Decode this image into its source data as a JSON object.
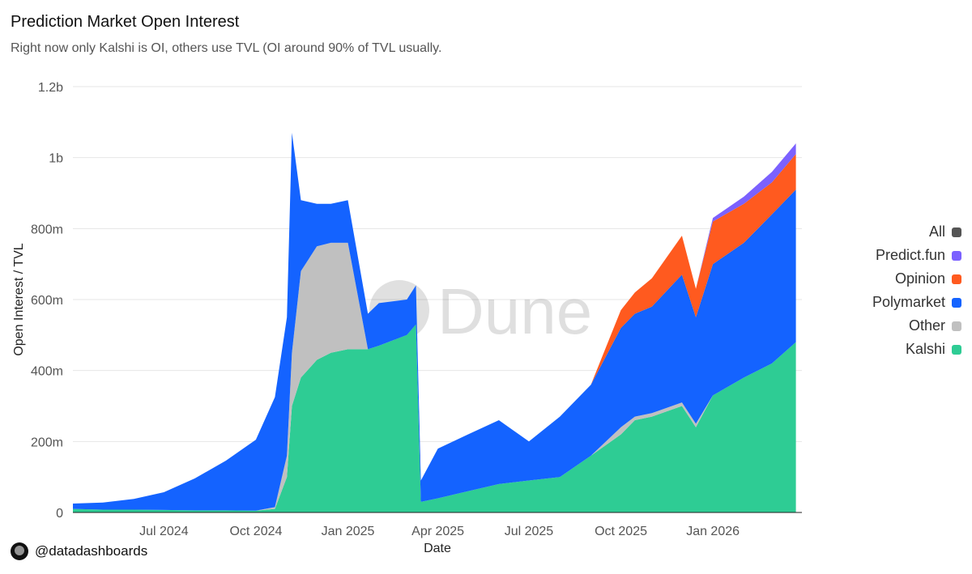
{
  "header": {
    "title": "Prediction Market Open Interest",
    "subtitle": "Right now only Kalshi is OI, others use TVL (OI around 90% of TVL usually."
  },
  "footer": {
    "handle": "@datadashboards"
  },
  "watermark": "Dune",
  "legend": [
    {
      "label": "All",
      "color": "#555555"
    },
    {
      "label": "Predict.fun",
      "color": "#7b61ff"
    },
    {
      "label": "Opinion",
      "color": "#ff5a1f"
    },
    {
      "label": "Polymarket",
      "color": "#1463ff"
    },
    {
      "label": "Other",
      "color": "#c0c0c0"
    },
    {
      "label": "Kalshi",
      "color": "#2ecc94"
    }
  ],
  "chart_data": {
    "type": "area",
    "stacked": true,
    "xlabel": "Date",
    "ylabel": "Open Interest / TVL",
    "x_range": [
      "2024-04-01",
      "2026-03-31"
    ],
    "ylim": [
      0,
      1200000000
    ],
    "y_ticks": [
      {
        "value": 0,
        "label": "0"
      },
      {
        "value": 200000000,
        "label": "200m"
      },
      {
        "value": 400000000,
        "label": "400m"
      },
      {
        "value": 600000000,
        "label": "600m"
      },
      {
        "value": 800000000,
        "label": "800m"
      },
      {
        "value": 1000000000,
        "label": "1b"
      },
      {
        "value": 1200000000,
        "label": "1.2b"
      }
    ],
    "x_ticks": [
      {
        "value": "2024-07-01",
        "label": "Jul 2024"
      },
      {
        "value": "2024-10-01",
        "label": "Oct 2024"
      },
      {
        "value": "2025-01-01",
        "label": "Jan 2025"
      },
      {
        "value": "2025-04-01",
        "label": "Apr 2025"
      },
      {
        "value": "2025-07-01",
        "label": "Jul 2025"
      },
      {
        "value": "2025-10-01",
        "label": "Oct 2025"
      },
      {
        "value": "2026-01-01",
        "label": "Jan 2026"
      }
    ],
    "grid": true,
    "legend_position": "right",
    "x": [
      "2024-04-01",
      "2024-05-01",
      "2024-06-01",
      "2024-07-01",
      "2024-08-01",
      "2024-09-01",
      "2024-10-01",
      "2024-10-20",
      "2024-11-01",
      "2024-11-06",
      "2024-11-15",
      "2024-12-01",
      "2024-12-15",
      "2025-01-01",
      "2025-01-21",
      "2025-02-01",
      "2025-03-01",
      "2025-03-10",
      "2025-03-15",
      "2025-04-01",
      "2025-05-01",
      "2025-06-01",
      "2025-07-01",
      "2025-08-01",
      "2025-09-01",
      "2025-10-01",
      "2025-10-15",
      "2025-11-01",
      "2025-12-01",
      "2025-12-15",
      "2026-01-01",
      "2026-02-01",
      "2026-03-01",
      "2026-03-25"
    ],
    "series": [
      {
        "name": "Kalshi",
        "color": "#2ecc94",
        "values": [
          10000000,
          8000000,
          8000000,
          7000000,
          6000000,
          6000000,
          5000000,
          10000000,
          100000000,
          300000000,
          380000000,
          430000000,
          450000000,
          460000000,
          460000000,
          470000000,
          500000000,
          530000000,
          30000000,
          40000000,
          60000000,
          80000000,
          90000000,
          100000000,
          160000000,
          220000000,
          260000000,
          270000000,
          300000000,
          240000000,
          330000000,
          380000000,
          420000000,
          480000000
        ]
      },
      {
        "name": "Other",
        "color": "#c0c0c0",
        "values": [
          0,
          0,
          0,
          0,
          0,
          0,
          0,
          5000000,
          60000000,
          150000000,
          300000000,
          320000000,
          310000000,
          300000000,
          0,
          0,
          0,
          0,
          0,
          0,
          0,
          0,
          0,
          0,
          0,
          20000000,
          10000000,
          10000000,
          10000000,
          10000000,
          0,
          0,
          0,
          0
        ]
      },
      {
        "name": "Polymarket",
        "color": "#1463ff",
        "values": [
          15000000,
          20000000,
          30000000,
          50000000,
          90000000,
          140000000,
          200000000,
          310000000,
          390000000,
          620000000,
          200000000,
          120000000,
          110000000,
          120000000,
          100000000,
          120000000,
          100000000,
          110000000,
          60000000,
          140000000,
          160000000,
          180000000,
          110000000,
          170000000,
          200000000,
          280000000,
          290000000,
          300000000,
          360000000,
          300000000,
          370000000,
          380000000,
          420000000,
          430000000
        ]
      },
      {
        "name": "Opinion",
        "color": "#ff5a1f",
        "values": [
          0,
          0,
          0,
          0,
          0,
          0,
          0,
          0,
          0,
          0,
          0,
          0,
          0,
          0,
          0,
          0,
          0,
          0,
          0,
          0,
          0,
          0,
          0,
          0,
          0,
          50000000,
          60000000,
          80000000,
          110000000,
          80000000,
          120000000,
          110000000,
          90000000,
          100000000
        ]
      },
      {
        "name": "Predict.fun",
        "color": "#7b61ff",
        "values": [
          0,
          0,
          0,
          0,
          0,
          0,
          0,
          0,
          0,
          0,
          0,
          0,
          0,
          0,
          0,
          0,
          0,
          0,
          0,
          0,
          0,
          0,
          0,
          0,
          0,
          0,
          0,
          0,
          0,
          0,
          10000000,
          20000000,
          30000000,
          30000000
        ]
      }
    ]
  }
}
